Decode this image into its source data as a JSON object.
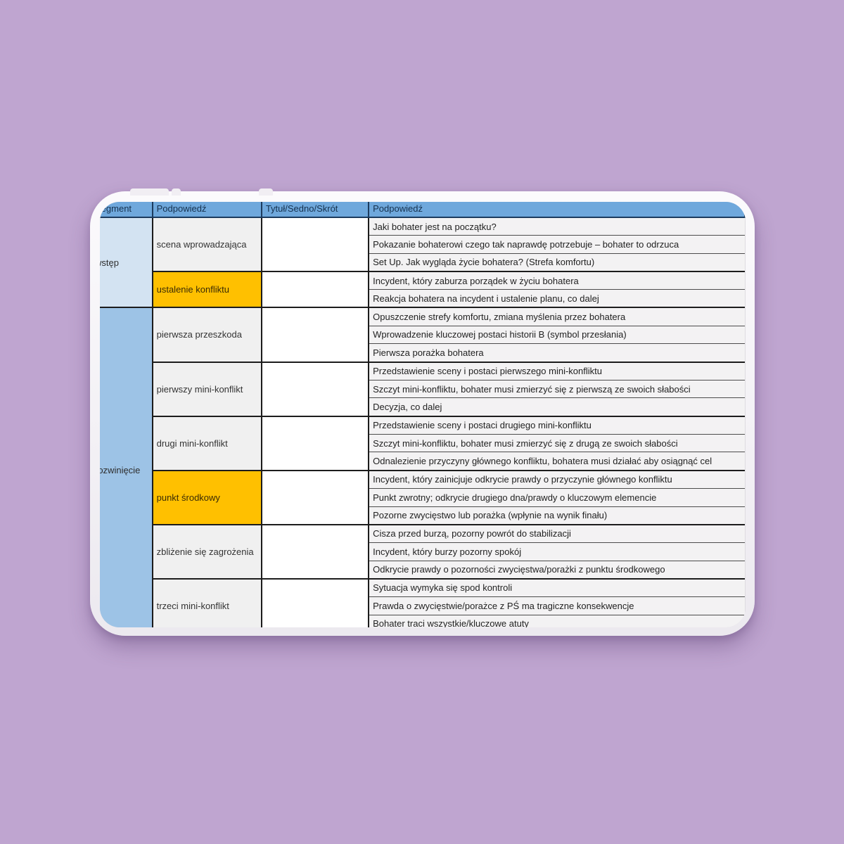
{
  "colors": {
    "background": "#BFA5D0",
    "header_blue": "#6FA8DC",
    "segment_intro_blue": "#D3E3F2",
    "segment_dev_blue": "#9DC3E6",
    "beat_gray": "#F0F0F0",
    "highlight_orange": "#FFC000"
  },
  "table": {
    "headers": [
      "Segment",
      "Podpowiedź",
      "Tytuł/Sedno/Skrót",
      "Podpowiedź"
    ],
    "segments": [
      {
        "label": "wstęp",
        "groups": [
          {
            "label": "scena wprowadzająca",
            "highlight": false,
            "prompts": [
              "Jaki bohater jest na początku?",
              "Pokazanie bohaterowi czego tak naprawdę potrzebuje – bohater to odrzuca",
              "Set Up. Jak wygląda życie bohatera? (Strefa komfortu)"
            ]
          },
          {
            "label": "ustalenie konfliktu",
            "highlight": true,
            "prompts": [
              "Incydent, który zaburza porządek w życiu bohatera",
              "Reakcja bohatera na incydent i ustalenie planu, co dalej"
            ]
          }
        ]
      },
      {
        "label": "rozwinięcie",
        "groups": [
          {
            "label": "pierwsza przeszkoda",
            "highlight": false,
            "prompts": [
              "Opuszczenie strefy komfortu, zmiana myślenia przez bohatera",
              "Wprowadzenie kluczowej postaci historii B (symbol przesłania)",
              "Pierwsza porażka bohatera"
            ]
          },
          {
            "label": "pierwszy mini-konflikt",
            "highlight": false,
            "prompts": [
              "Przedstawienie sceny i postaci pierwszego mini-konfliktu",
              "Szczyt mini-konfliktu, bohater musi zmierzyć się z pierwszą ze swoich słabości",
              "Decyzja, co dalej"
            ]
          },
          {
            "label": "drugi mini-konflikt",
            "highlight": false,
            "prompts": [
              "Przedstawienie sceny i postaci drugiego mini-konfliktu",
              "Szczyt mini-konfliktu, bohater musi zmierzyć się z drugą ze swoich słabości",
              "Odnalezienie przyczyny głównego konfliktu, bohatera musi działać aby osiągnąć cel"
            ]
          },
          {
            "label": "punkt środkowy",
            "highlight": true,
            "prompts": [
              "Incydent, który zainicjuje odkrycie prawdy o przyczynie głównego konfliktu",
              "Punkt zwrotny; odkrycie drugiego dna/prawdy o kluczowym elemencie",
              "Pozorne zwycięstwo lub porażka (wpłynie na wynik finału)"
            ]
          },
          {
            "label": "zbliżenie się zagrożenia",
            "highlight": false,
            "prompts": [
              "Cisza przed burzą, pozorny powrót do stabilizacji",
              "Incydent, który burzy pozorny spokój",
              "Odkrycie prawdy o pozorności zwycięstwa/porażki z punktu środkowego"
            ]
          },
          {
            "label": "trzeci mini-konflikt",
            "highlight": false,
            "prompts": [
              "Sytuacja wymyka się spod kontroli",
              "Prawda o zwycięstwie/porażce z PŚ ma tragiczne konsekwencje",
              "Bohater traci wszystkie/kluczowe atuty"
            ]
          }
        ]
      }
    ]
  }
}
